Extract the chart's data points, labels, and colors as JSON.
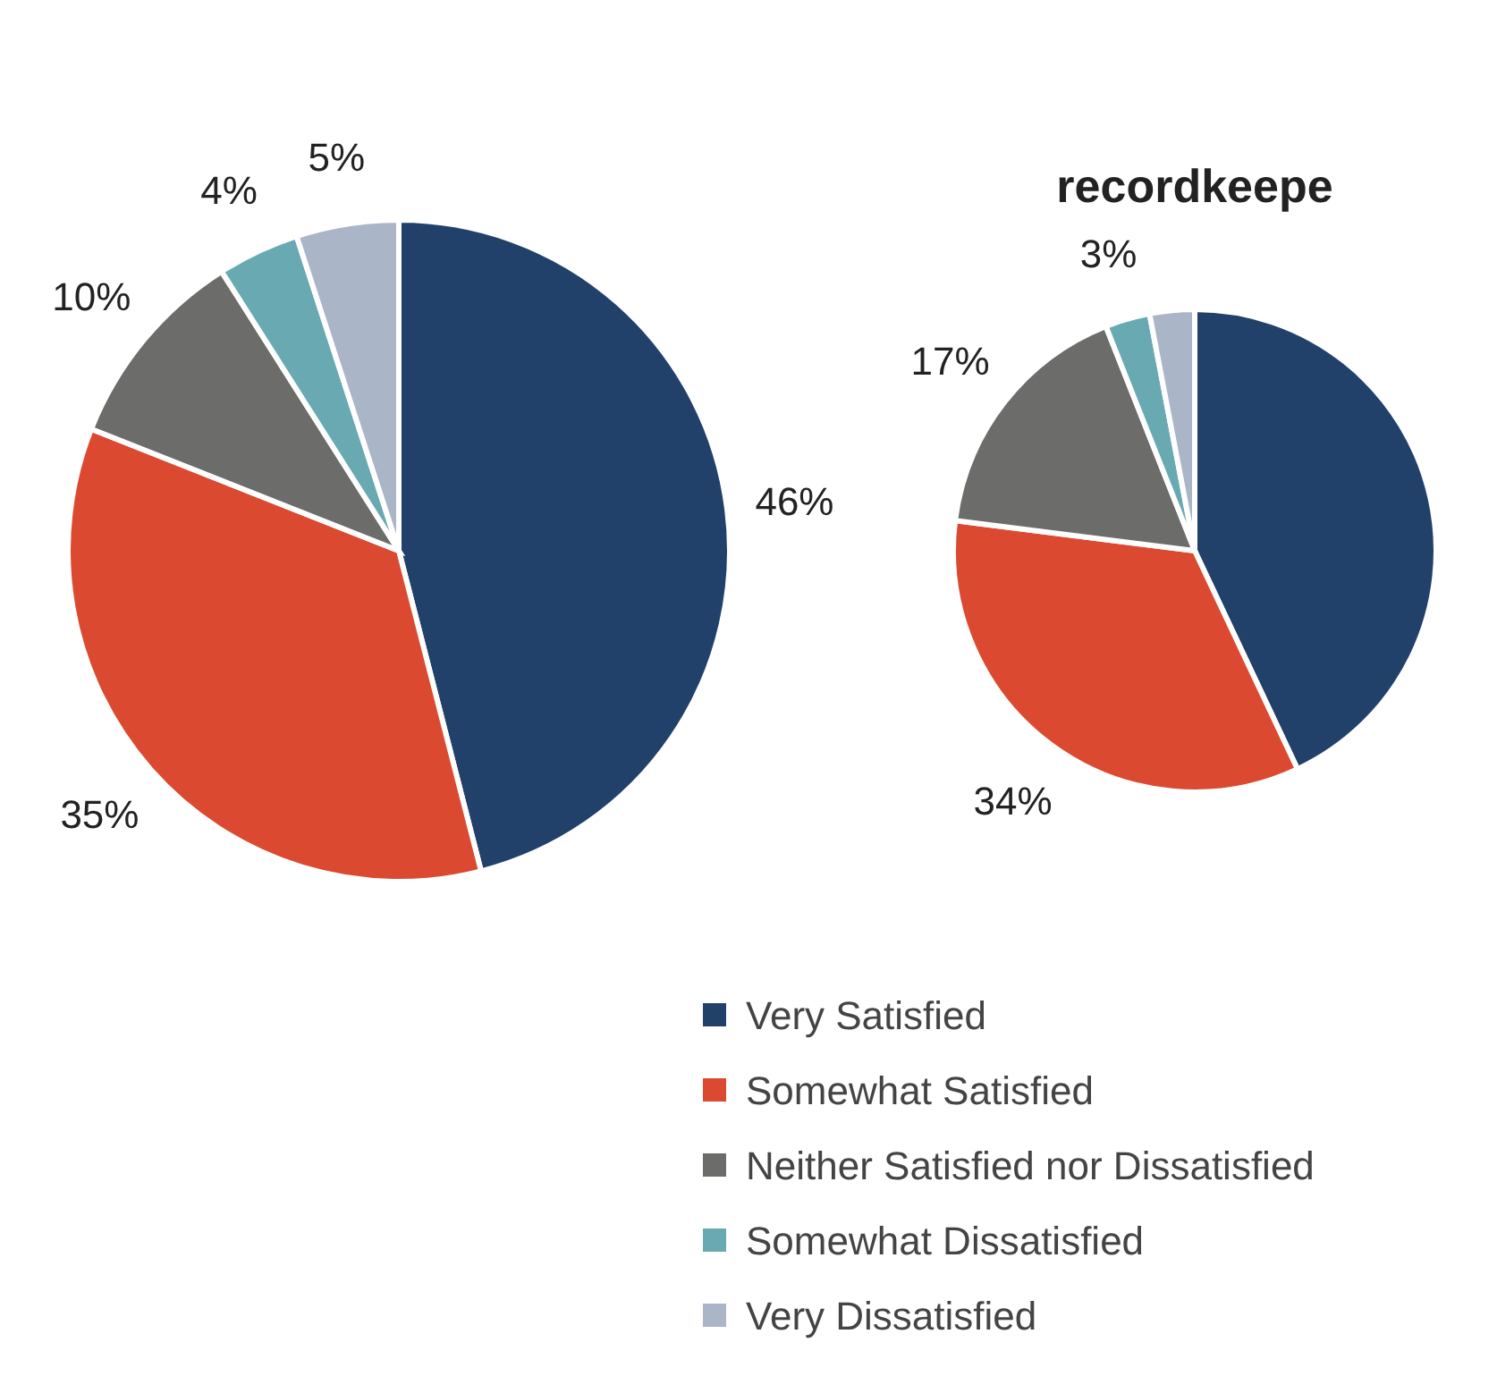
{
  "chart_data": [
    {
      "type": "pie",
      "categories": [
        "Very Satisfied",
        "Somewhat Satisfied",
        "Neither Satisfied nor Dissatisfied",
        "Somewhat Dissatisfied",
        "Very Dissatisfied"
      ],
      "values": [
        46,
        35,
        10,
        4,
        5
      ],
      "value_labels": [
        "46%",
        "35%",
        "10%",
        "4%",
        "5%"
      ],
      "colors": [
        "#22416a",
        "#db4a30",
        "#6c6d6b",
        "#69aab2",
        "#abb5c8"
      ],
      "legend": "bottom right"
    },
    {
      "type": "pie",
      "title": "recordkeepe",
      "categories": [
        null,
        null,
        null,
        null,
        null
      ],
      "values": [
        43,
        34,
        17,
        3,
        3
      ],
      "value_labels": [
        null,
        "34%",
        "17%",
        "3%",
        null
      ],
      "colors": [
        "#22416a",
        "#db4a30",
        "#6c6d6b",
        "#69aab2",
        "#abb5c8"
      ]
    }
  ]
}
